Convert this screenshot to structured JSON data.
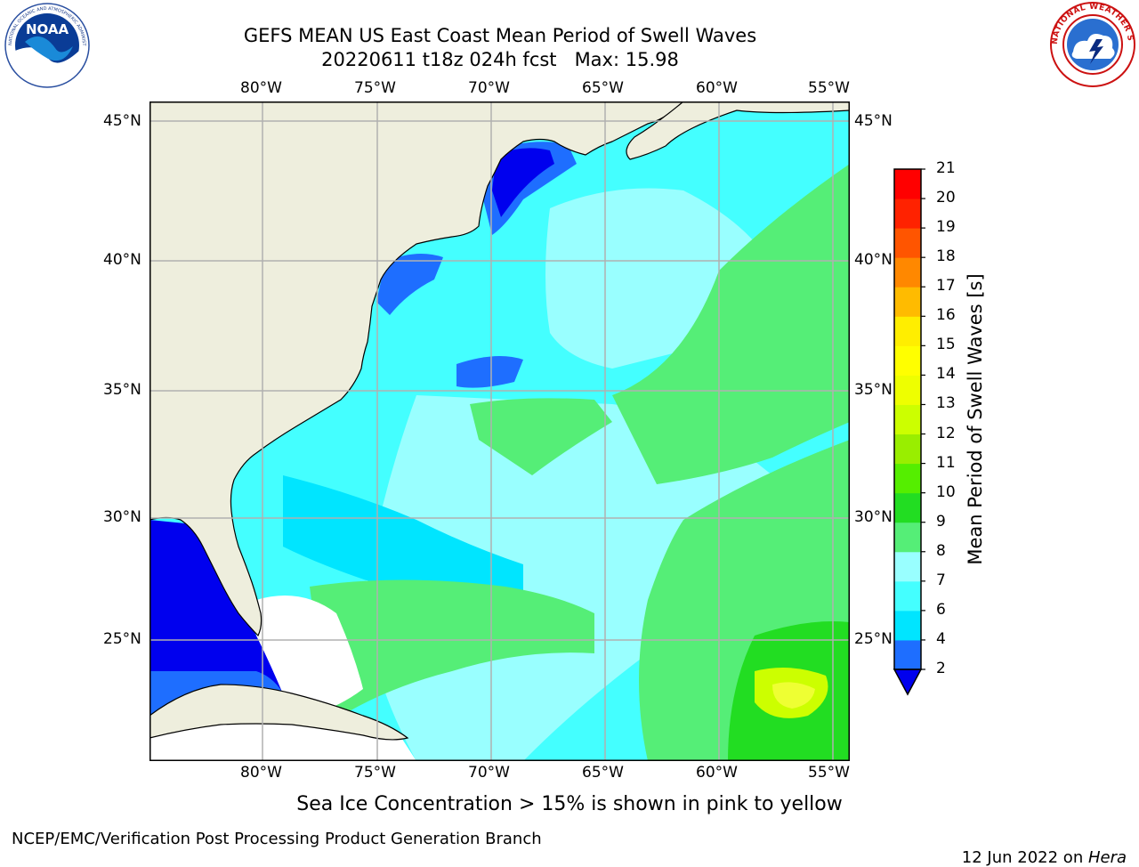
{
  "header": {
    "title": "GEFS MEAN US East Coast Mean Period of Swell Waves",
    "subtitle": "20220611 t18z 024h fcst   Max: 15.98",
    "left_logo": "NOAA",
    "left_logo_ring_text": "NATIONAL OCEANIC AND ATMOSPHERIC ADMINISTRATION • U.S. DEPARTMENT OF COMMERCE",
    "right_logo_text": "NATIONAL WEATHER SERVICE"
  },
  "map": {
    "lon_labels": [
      "80°W",
      "75°W",
      "70°W",
      "65°W",
      "60°W",
      "55°W"
    ],
    "lat_labels": [
      "45°N",
      "40°N",
      "35°N",
      "30°N",
      "25°N"
    ],
    "colors": {
      "land": "#EEEEDD",
      "gridline": "#B0B0B0",
      "blue_deep": "#0000EE",
      "blue_mid": "#1E6EFF",
      "cyan": "#00E5FF",
      "cyan_light": "#44FFFF",
      "aqua_pale": "#99FFFF",
      "green_light": "#55EE77",
      "green": "#22DD22",
      "yellow_green": "#CCFF00",
      "yellow": "#EEFF33"
    }
  },
  "colorbar": {
    "label": "Mean Period of Swell Waves [s]",
    "levels": [
      "2",
      "4",
      "6",
      "7",
      "8",
      "9",
      "10",
      "11",
      "12",
      "13",
      "14",
      "15",
      "16",
      "17",
      "18",
      "19",
      "20",
      "21"
    ],
    "colors": [
      "#1E6EFF",
      "#00E5FF",
      "#44FFFF",
      "#99FFFF",
      "#55EE77",
      "#22DD22",
      "#55EE00",
      "#99EE00",
      "#CCFF00",
      "#EEFF00",
      "#FFFF00",
      "#FFEE00",
      "#FFBB00",
      "#FF8800",
      "#FF5500",
      "#FF2200",
      "#FF0000"
    ],
    "under_color": "#0000EE"
  },
  "footer": {
    "note": "Sea Ice Concentration > 15% is shown in pink to yellow",
    "credit": "NCEP/EMC/Verification Post Processing Product Generation Branch",
    "date": "12 Jun 2022 on ",
    "machine": "Hera"
  }
}
